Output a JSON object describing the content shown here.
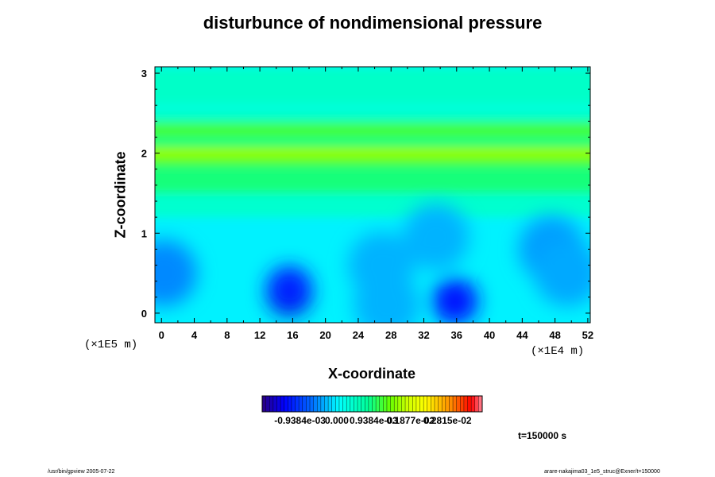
{
  "chart_data": {
    "type": "heatmap",
    "title": "disturbunce of nondimensional pressure",
    "xlabel": "X-coordinate",
    "ylabel": "Z-coordinate",
    "x_unit": "(×1E4 m)",
    "z_unit": "(×1E5 m)",
    "x_ticks": [
      "0",
      "4",
      "8",
      "12",
      "16",
      "20",
      "24",
      "28",
      "32",
      "36",
      "40",
      "44",
      "48",
      "52"
    ],
    "x_tick_values": [
      0,
      4,
      8,
      12,
      16,
      20,
      24,
      28,
      32,
      36,
      40,
      44,
      48,
      52
    ],
    "z_ticks": [
      "0",
      "1",
      "2",
      "3"
    ],
    "z_tick_values": [
      0,
      1,
      2,
      3
    ],
    "xlim": [
      -0.8,
      52.3
    ],
    "zlim": [
      -0.12,
      3.08
    ],
    "colorbar": {
      "labels": [
        "-0.9384e-03",
        "0.000",
        "0.9384e-03",
        "0.1877e-02",
        "0.2815e-02"
      ],
      "values": [
        -0.0009384,
        0.0,
        0.0009384,
        0.001877,
        0.002815
      ],
      "range": [
        -0.0019,
        0.0037
      ]
    },
    "background_value": 0.0,
    "horizontal_bands": [
      {
        "z_from": 1.2,
        "z_to": 1.5,
        "value": 0.0004
      },
      {
        "z_from": 1.5,
        "z_to": 1.85,
        "value": 0.0009
      },
      {
        "z_from": 1.85,
        "z_to": 2.1,
        "value": 0.00125
      },
      {
        "z_from": 1.95,
        "z_to": 2.05,
        "value": 0.0016
      },
      {
        "z_from": 2.1,
        "z_to": 2.2,
        "value": 0.00085
      },
      {
        "z_from": 2.2,
        "z_to": 2.38,
        "value": 0.00115
      },
      {
        "z_from": 2.38,
        "z_to": 2.5,
        "value": 0.0005
      },
      {
        "z_from": 2.5,
        "z_to": 2.62,
        "value": 0.0003
      },
      {
        "z_from": 2.62,
        "z_to": 3.08,
        "value": 0.00045
      }
    ],
    "features": [
      {
        "x": 15.6,
        "z": 0.25,
        "value": -0.0017
      },
      {
        "x": 15.6,
        "z": 0.3,
        "value": -0.0011
      },
      {
        "x": 35.8,
        "z": 0.15,
        "value": -0.0012
      },
      {
        "x": 0.3,
        "z": 0.5,
        "value": -0.0005
      },
      {
        "x": 47.6,
        "z": 0.8,
        "value": -0.0004
      },
      {
        "x": 49.5,
        "z": 0.5,
        "value": -0.00035
      },
      {
        "x": 26.8,
        "z": 0.6,
        "value": -0.0003
      },
      {
        "x": 27.5,
        "z": 0.1,
        "value": -0.0003
      },
      {
        "x": 33.5,
        "z": 0.95,
        "value": -0.0003
      }
    ],
    "annotation": "t=150000 s"
  },
  "footer": {
    "left": "/usr/bin/gpview 2005-07-22",
    "right": "arare-nakajima03_1e5_struc@Exner/t=150000"
  }
}
